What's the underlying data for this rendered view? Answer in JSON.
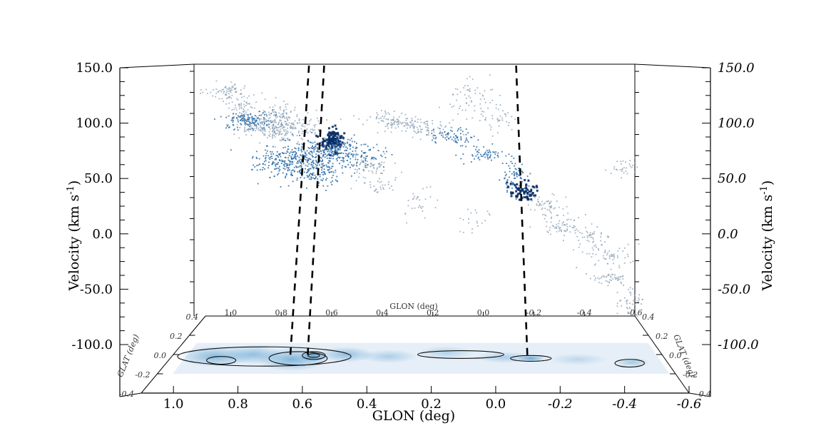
{
  "chart_data": {
    "type": "scatter",
    "title": "",
    "y_axis": {
      "label_main": "Velocity (km s",
      "label_sup": "-1",
      "label_end": ")",
      "ticks": [
        "150.0",
        "100.0",
        "50.0",
        "0.0",
        "-50.0",
        "-100.0"
      ],
      "ticks_right": [
        "150.0",
        "100.0",
        "50.0",
        "0.0",
        "-50.0",
        "-100.0"
      ],
      "range": [
        -100,
        150
      ]
    },
    "x_axis": {
      "label": "GLON (deg)",
      "label_back": "GLON (deg)",
      "ticks": [
        "1.0",
        "0.8",
        "0.6",
        "0.4",
        "0.2",
        "0.0",
        "-0.2",
        "-0.4",
        "-0.6"
      ],
      "ticks_back": [
        "1.0",
        "0.8",
        "0.6",
        "0.4",
        "0.2",
        "0.0",
        "-0.2",
        "-0.4",
        "-0.6"
      ],
      "range": [
        1.1,
        -0.6
      ]
    },
    "z_axis": {
      "label": "GLAT (deg)",
      "ticks": [
        "-0.4",
        "-0.2",
        "0.0",
        "0.2",
        "0.4"
      ],
      "range": [
        -0.4,
        0.4
      ]
    },
    "dashed_lines_glon": [
      0.69,
      0.63,
      -0.13
    ],
    "colors": {
      "light": "#8a9db2",
      "mid": "#2f6fa8",
      "dark": "#0a2f66",
      "map": "#3e8fc9"
    },
    "ppv_clumps": [
      {
        "l": 1.02,
        "v": 122,
        "n": 70,
        "sl": 0.04,
        "sv": 4,
        "c": "light"
      },
      {
        "l": 0.96,
        "v": 106,
        "n": 60,
        "sl": 0.04,
        "sv": 6,
        "c": "light"
      },
      {
        "l": 0.93,
        "v": 93,
        "n": 140,
        "sl": 0.05,
        "sv": 4,
        "c": "mid"
      },
      {
        "l": 0.86,
        "v": 88,
        "n": 160,
        "sl": 0.06,
        "sv": 6,
        "c": "light"
      },
      {
        "l": 0.8,
        "v": 100,
        "n": 50,
        "sl": 0.03,
        "sv": 6,
        "c": "light"
      },
      {
        "l": 0.75,
        "v": 85,
        "n": 120,
        "sl": 0.06,
        "sv": 8,
        "c": "light"
      },
      {
        "l": 0.7,
        "v": 60,
        "n": 180,
        "sl": 0.07,
        "sv": 9,
        "c": "mid"
      },
      {
        "l": 0.8,
        "v": 50,
        "n": 160,
        "sl": 0.06,
        "sv": 8,
        "c": "mid"
      },
      {
        "l": 0.66,
        "v": 45,
        "n": 140,
        "sl": 0.05,
        "sv": 8,
        "c": "mid"
      },
      {
        "l": 0.6,
        "v": 74,
        "n": 140,
        "sl": 0.02,
        "sv": 5,
        "c": "dark"
      },
      {
        "l": 0.58,
        "v": 68,
        "n": 90,
        "sl": 0.04,
        "sv": 5,
        "c": "mid"
      },
      {
        "l": 0.5,
        "v": 58,
        "n": 110,
        "sl": 0.06,
        "sv": 6,
        "c": "mid"
      },
      {
        "l": 0.45,
        "v": 48,
        "n": 60,
        "sl": 0.05,
        "sv": 6,
        "c": "light"
      },
      {
        "l": 0.38,
        "v": 92,
        "n": 60,
        "sl": 0.06,
        "sv": 5,
        "c": "light"
      },
      {
        "l": 0.3,
        "v": 90,
        "n": 50,
        "sl": 0.05,
        "sv": 4,
        "c": "light"
      },
      {
        "l": 0.42,
        "v": 28,
        "n": 30,
        "sl": 0.04,
        "sv": 4,
        "c": "light"
      },
      {
        "l": 0.22,
        "v": 85,
        "n": 60,
        "sl": 0.06,
        "sv": 4,
        "c": "light"
      },
      {
        "l": 0.12,
        "v": 78,
        "n": 70,
        "sl": 0.05,
        "sv": 4,
        "c": "mid"
      },
      {
        "l": 0.0,
        "v": 60,
        "n": 60,
        "sl": 0.05,
        "sv": 4,
        "c": "mid"
      },
      {
        "l": 0.05,
        "v": 115,
        "n": 60,
        "sl": 0.05,
        "sv": 10,
        "c": "light"
      },
      {
        "l": -0.05,
        "v": 95,
        "n": 40,
        "sl": 0.04,
        "sv": 8,
        "c": "light"
      },
      {
        "l": -0.12,
        "v": 38,
        "n": 80,
        "sl": 0.03,
        "sv": 8,
        "c": "mid"
      },
      {
        "l": -0.16,
        "v": 24,
        "n": 70,
        "sl": 0.03,
        "sv": 4,
        "c": "dark"
      },
      {
        "l": -0.24,
        "v": 10,
        "n": 50,
        "sl": 0.04,
        "sv": 5,
        "c": "light"
      },
      {
        "l": -0.32,
        "v": -10,
        "n": 70,
        "sl": 0.05,
        "sv": 5,
        "c": "light"
      },
      {
        "l": -0.42,
        "v": -22,
        "n": 40,
        "sl": 0.04,
        "sv": 4,
        "c": "light"
      },
      {
        "l": -0.5,
        "v": -40,
        "n": 60,
        "sl": 0.05,
        "sv": 6,
        "c": "light"
      },
      {
        "l": -0.5,
        "v": -62,
        "n": 50,
        "sl": 0.04,
        "sv": 4,
        "c": "light"
      },
      {
        "l": -0.55,
        "v": 45,
        "n": 30,
        "sl": 0.03,
        "sv": 5,
        "c": "light"
      },
      {
        "l": -0.58,
        "v": -85,
        "n": 40,
        "sl": 0.03,
        "sv": 6,
        "c": "light"
      },
      {
        "l": 0.25,
        "v": 10,
        "n": 30,
        "sl": 0.04,
        "sv": 8,
        "c": "light"
      },
      {
        "l": 0.05,
        "v": -5,
        "n": 20,
        "sl": 0.04,
        "sv": 6,
        "c": "light"
      }
    ],
    "map_blobs": [
      {
        "l": 0.95,
        "b": -0.02,
        "rl": 0.13,
        "rb": 0.11,
        "o": 0.55
      },
      {
        "l": 0.82,
        "b": 0.0,
        "rl": 0.1,
        "rb": 0.1,
        "o": 0.5
      },
      {
        "l": 0.68,
        "b": -0.05,
        "rl": 0.12,
        "rb": 0.12,
        "o": 0.6
      },
      {
        "l": 0.61,
        "b": -0.02,
        "rl": 0.05,
        "rb": 0.06,
        "o": 0.75
      },
      {
        "l": 0.5,
        "b": 0.0,
        "rl": 0.1,
        "rb": 0.08,
        "o": 0.5
      },
      {
        "l": 0.35,
        "b": -0.02,
        "rl": 0.1,
        "rb": 0.07,
        "o": 0.35
      },
      {
        "l": 0.15,
        "b": 0.02,
        "rl": 0.1,
        "rb": 0.07,
        "o": 0.3
      },
      {
        "l": -0.05,
        "b": -0.03,
        "rl": 0.1,
        "rb": 0.06,
        "o": 0.35
      },
      {
        "l": -0.14,
        "b": -0.04,
        "rl": 0.05,
        "rb": 0.04,
        "o": 0.7
      },
      {
        "l": -0.3,
        "b": -0.05,
        "rl": 0.1,
        "rb": 0.06,
        "o": 0.25
      },
      {
        "l": -0.48,
        "b": -0.08,
        "rl": 0.06,
        "rb": 0.05,
        "o": 0.4
      }
    ],
    "contours": [
      {
        "l": 0.78,
        "b": -0.02,
        "rl": 0.3,
        "rb": 0.1
      },
      {
        "l": 0.66,
        "b": -0.04,
        "rl": 0.1,
        "rb": 0.07
      },
      {
        "l": 0.61,
        "b": -0.01,
        "rl": 0.04,
        "rb": 0.04
      },
      {
        "l": 0.61,
        "b": -0.01,
        "rl": 0.02,
        "rb": 0.02
      },
      {
        "l": 0.1,
        "b": 0.0,
        "rl": 0.15,
        "rb": 0.04
      },
      {
        "l": -0.14,
        "b": -0.04,
        "rl": 0.07,
        "rb": 0.03
      },
      {
        "l": -0.47,
        "b": -0.09,
        "rl": 0.05,
        "rb": 0.04
      },
      {
        "l": 0.92,
        "b": -0.06,
        "rl": 0.05,
        "rb": 0.04
      }
    ]
  }
}
